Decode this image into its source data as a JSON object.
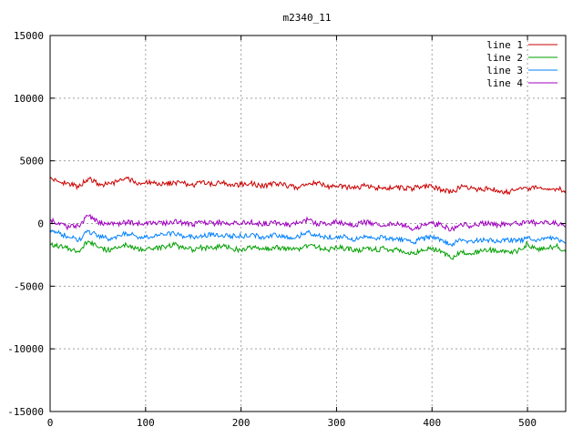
{
  "chart_data": {
    "type": "line",
    "title": "m2340_11",
    "xlabel": "",
    "ylabel": "",
    "xlim": [
      0,
      540
    ],
    "ylim": [
      -15000,
      15000
    ],
    "x_ticks": [
      0,
      100,
      200,
      300,
      400,
      500
    ],
    "y_ticks": [
      -15000,
      -10000,
      -5000,
      0,
      5000,
      10000,
      15000
    ],
    "grid": true,
    "legend_position": "top-right",
    "series": [
      {
        "name": "line 1",
        "color": "#cc0000",
        "x": [
          0,
          10,
          20,
          30,
          40,
          50,
          60,
          70,
          80,
          90,
          100,
          110,
          120,
          130,
          140,
          150,
          160,
          170,
          180,
          190,
          200,
          210,
          220,
          230,
          240,
          250,
          260,
          270,
          280,
          290,
          300,
          310,
          320,
          330,
          340,
          350,
          360,
          370,
          380,
          390,
          400,
          410,
          420,
          430,
          440,
          450,
          460,
          470,
          480,
          490,
          500,
          510,
          520,
          530,
          540
        ],
        "y": [
          3600,
          3300,
          3200,
          2900,
          3600,
          3200,
          3100,
          3300,
          3700,
          3200,
          3300,
          3200,
          3100,
          3300,
          3200,
          3000,
          3400,
          3100,
          3300,
          3100,
          3100,
          3200,
          3000,
          3100,
          3200,
          3000,
          2900,
          3100,
          3300,
          2900,
          3000,
          2900,
          2800,
          3000,
          2900,
          2800,
          2900,
          2800,
          2800,
          3000,
          2900,
          2700,
          2500,
          2900,
          2800,
          2700,
          2800,
          2600,
          2500,
          2700,
          2800,
          2800,
          2700,
          2800,
          2600
        ]
      },
      {
        "name": "line 2",
        "color": "#00a000",
        "x": [
          0,
          10,
          20,
          30,
          40,
          50,
          60,
          70,
          80,
          90,
          100,
          110,
          120,
          130,
          140,
          150,
          160,
          170,
          180,
          190,
          200,
          210,
          220,
          230,
          240,
          250,
          260,
          270,
          280,
          290,
          300,
          310,
          320,
          330,
          340,
          350,
          360,
          370,
          380,
          390,
          400,
          410,
          420,
          430,
          440,
          450,
          460,
          470,
          480,
          490,
          500,
          510,
          520,
          530,
          540
        ],
        "y": [
          -1600,
          -1800,
          -2000,
          -2200,
          -1400,
          -1900,
          -2100,
          -2000,
          -1700,
          -2000,
          -2100,
          -2000,
          -1900,
          -1700,
          -2000,
          -2100,
          -1900,
          -2000,
          -1800,
          -2000,
          -2100,
          -1900,
          -2000,
          -2000,
          -1900,
          -2100,
          -2000,
          -1800,
          -1900,
          -2100,
          -1900,
          -2000,
          -2200,
          -2000,
          -2100,
          -2000,
          -2100,
          -2200,
          -2400,
          -2200,
          -2000,
          -2200,
          -2800,
          -2200,
          -2400,
          -2200,
          -2100,
          -2300,
          -2200,
          -2200,
          -1600,
          -2100,
          -2000,
          -1800,
          -2300
        ]
      },
      {
        "name": "line 3",
        "color": "#0080ff",
        "x": [
          0,
          10,
          20,
          30,
          40,
          50,
          60,
          70,
          80,
          90,
          100,
          110,
          120,
          130,
          140,
          150,
          160,
          170,
          180,
          190,
          200,
          210,
          220,
          230,
          240,
          250,
          260,
          270,
          280,
          290,
          300,
          310,
          320,
          330,
          340,
          350,
          360,
          370,
          380,
          390,
          400,
          410,
          420,
          430,
          440,
          450,
          460,
          470,
          480,
          490,
          500,
          510,
          520,
          530,
          540
        ],
        "y": [
          -500,
          -800,
          -1100,
          -1300,
          -600,
          -1000,
          -1200,
          -1000,
          -800,
          -1000,
          -1100,
          -900,
          -900,
          -800,
          -1000,
          -1100,
          -1000,
          -900,
          -900,
          -1000,
          -1000,
          -900,
          -1100,
          -1000,
          -900,
          -1100,
          -1000,
          -700,
          -1000,
          -1100,
          -1000,
          -1100,
          -1300,
          -1100,
          -1200,
          -1100,
          -1200,
          -1300,
          -1500,
          -1200,
          -1100,
          -1300,
          -1700,
          -1300,
          -1400,
          -1300,
          -1300,
          -1400,
          -1300,
          -1400,
          -1200,
          -1300,
          -1200,
          -1100,
          -1600
        ]
      },
      {
        "name": "line 4",
        "color": "#a000c0",
        "x": [
          0,
          10,
          20,
          30,
          40,
          50,
          60,
          70,
          80,
          90,
          100,
          110,
          120,
          130,
          140,
          150,
          160,
          170,
          180,
          190,
          200,
          210,
          220,
          230,
          240,
          250,
          260,
          270,
          280,
          290,
          300,
          310,
          320,
          330,
          340,
          350,
          360,
          370,
          380,
          390,
          400,
          410,
          420,
          430,
          440,
          450,
          460,
          470,
          480,
          490,
          500,
          510,
          520,
          530,
          540
        ],
        "y": [
          300,
          -100,
          -300,
          -200,
          600,
          100,
          -100,
          0,
          100,
          0,
          0,
          100,
          0,
          200,
          0,
          -100,
          100,
          0,
          100,
          0,
          0,
          100,
          0,
          0,
          100,
          -100,
          0,
          300,
          0,
          -100,
          200,
          0,
          -100,
          100,
          0,
          -100,
          0,
          -100,
          -500,
          -100,
          0,
          -100,
          -500,
          0,
          -200,
          0,
          0,
          -100,
          0,
          0,
          200,
          0,
          100,
          0,
          -200
        ]
      }
    ]
  }
}
